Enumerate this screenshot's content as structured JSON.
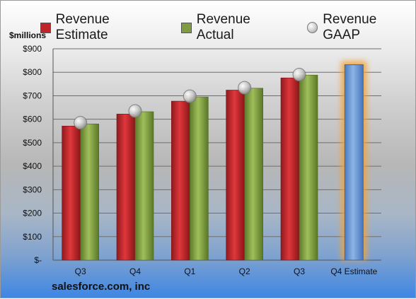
{
  "legend": {
    "estimate": "Revenue Estimate",
    "actual": "Revenue Actual",
    "gaap": "Revenue GAAP"
  },
  "unit_label": "$millions",
  "footer": "salesforce.com, inc",
  "colors": {
    "estimate": "#c0252a",
    "actual": "#7e9d3f",
    "q4_estimate": "#6d99d6",
    "gaap": "#bdbdbd"
  },
  "chart_data": {
    "type": "bar",
    "categories": [
      "Q3",
      "Q4",
      "Q1",
      "Q2",
      "Q3",
      "Q4 Estimate"
    ],
    "series": [
      {
        "name": "Revenue Estimate",
        "values": [
          571,
          622,
          677,
          724,
          776,
          832
        ]
      },
      {
        "name": "Revenue Actual",
        "values": [
          580,
          632,
          695,
          732,
          788,
          null
        ]
      },
      {
        "name": "Revenue GAAP",
        "type": "scatter",
        "values": [
          585,
          635,
          698,
          734,
          790,
          null
        ]
      }
    ],
    "ylim": [
      0,
      900
    ],
    "yticks": [
      0,
      100,
      200,
      300,
      400,
      500,
      600,
      700,
      800,
      900
    ],
    "ytick_labels": [
      "$-",
      "$100",
      "$200",
      "$300",
      "$400",
      "$500",
      "$600",
      "$700",
      "$800",
      "$900"
    ],
    "grid": true,
    "legend_position": "top"
  }
}
